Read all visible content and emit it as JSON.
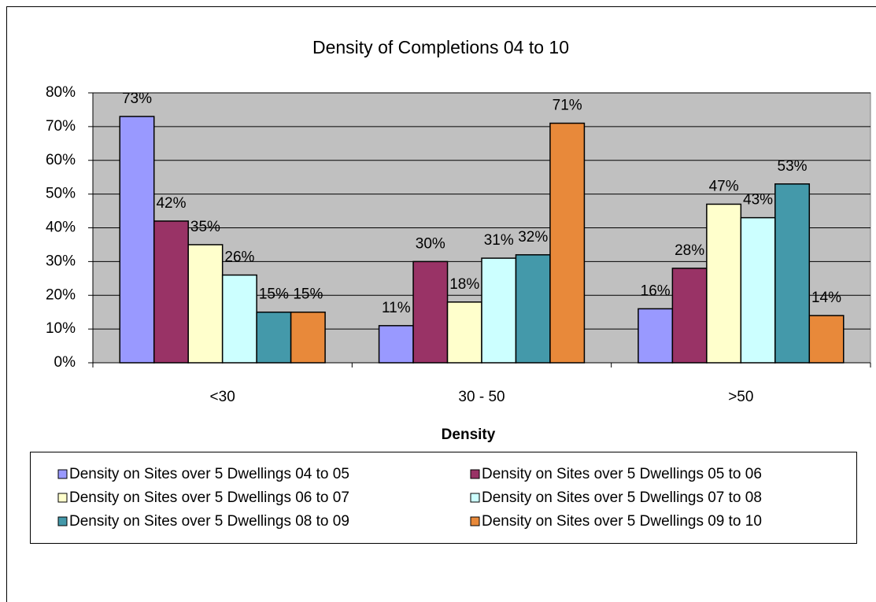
{
  "chart_data": {
    "type": "bar",
    "title": "Density of Completions 04 to 10",
    "x_label": "Density",
    "categories": [
      "<30",
      "30 - 50",
      ">50"
    ],
    "series": [
      {
        "name": "Density on Sites over 5 Dwellings 04 to 05",
        "color": "#9999ff",
        "values": [
          73,
          11,
          16
        ],
        "value_labels": [
          "73%",
          "11%",
          "16%"
        ]
      },
      {
        "name": "Density on Sites over 5 Dwellings 05 to 06",
        "color": "#993366",
        "values": [
          42,
          30,
          28
        ],
        "value_labels": [
          "42%",
          "30%",
          "28%"
        ]
      },
      {
        "name": "Density on Sites over 5 Dwellings 06 to 07",
        "color": "#ffffcc",
        "values": [
          35,
          18,
          47
        ],
        "value_labels": [
          "35%",
          "18%",
          "47%"
        ]
      },
      {
        "name": "Density on Sites over 5 Dwellings 07 to 08",
        "color": "#ccffff",
        "values": [
          26,
          31,
          43
        ],
        "value_labels": [
          "26%",
          "31%",
          "43%"
        ]
      },
      {
        "name": "Density on Sites over 5 Dwellings 08 to 09",
        "color": "#4499aa",
        "values": [
          15,
          32,
          53
        ],
        "value_labels": [
          "15%",
          "32%",
          "53%"
        ]
      },
      {
        "name": "Density on Sites over 5 Dwellings 09 to 10",
        "color": "#e8893a",
        "values": [
          15,
          71,
          14
        ],
        "value_labels": [
          "15%",
          "71%",
          "14%"
        ]
      }
    ],
    "ylim": [
      0,
      80
    ],
    "yticks": [
      {
        "value": 0,
        "label": "0%"
      },
      {
        "value": 10,
        "label": "10%"
      },
      {
        "value": 20,
        "label": "20%"
      },
      {
        "value": 30,
        "label": "30%"
      },
      {
        "value": 40,
        "label": "40%"
      },
      {
        "value": 50,
        "label": "50%"
      },
      {
        "value": 60,
        "label": "60%"
      },
      {
        "value": 70,
        "label": "70%"
      },
      {
        "value": 80,
        "label": "80%"
      }
    ],
    "grid": true,
    "legend": "bottom"
  }
}
